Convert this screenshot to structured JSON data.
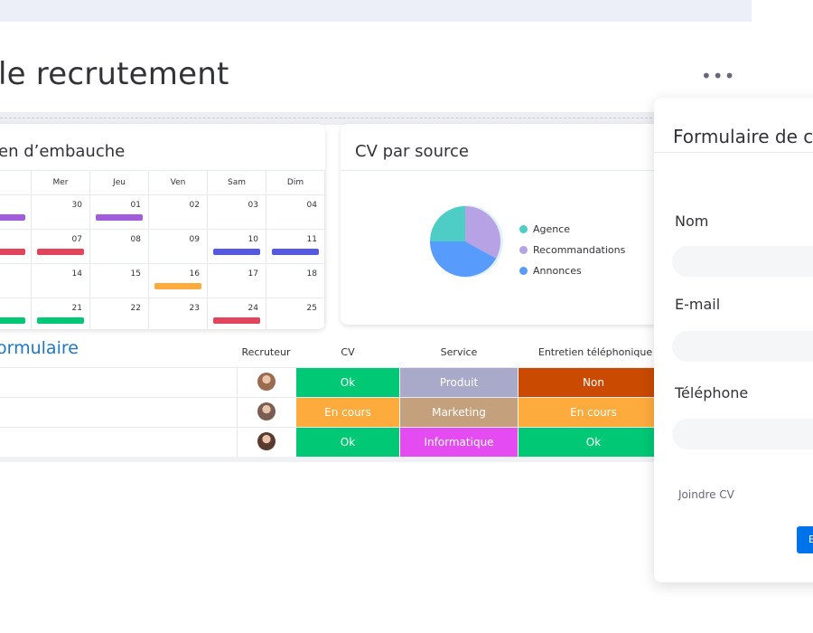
{
  "board": {
    "title": "le recrutement",
    "more_icon": "more-dots-icon"
  },
  "calendar": {
    "title": "en d’embauche",
    "days": [
      "Mer",
      "Jeu",
      "Ven",
      "Sam",
      "Dim"
    ],
    "weeks": [
      [
        {
          "num": "30"
        },
        {
          "num": "01",
          "bar": "#a25ddc"
        },
        {
          "num": "02"
        },
        {
          "num": "03"
        },
        {
          "num": "04"
        }
      ],
      [
        {
          "num": "07",
          "bar": "#e2445c"
        },
        {
          "num": "08"
        },
        {
          "num": "09"
        },
        {
          "num": "10",
          "bar": "#5559df"
        },
        {
          "num": "11",
          "bar": "#5559df"
        }
      ],
      [
        {
          "num": "14"
        },
        {
          "num": "15"
        },
        {
          "num": "16",
          "bar": "#fdab3d"
        },
        {
          "num": "17"
        },
        {
          "num": "18"
        }
      ],
      [
        {
          "num": "21",
          "bar": "#00c875"
        },
        {
          "num": "22"
        },
        {
          "num": "23"
        },
        {
          "num": "24",
          "bar": "#e2445c"
        },
        {
          "num": "25"
        }
      ]
    ],
    "left_bar_colors": [
      "#a25ddc",
      "#e2445c",
      "#ffffff",
      "#00c875"
    ]
  },
  "cv_chart": {
    "title": "CV par source",
    "legend": [
      {
        "label": "Agence",
        "color": "#4eccc6"
      },
      {
        "label": "Recommandations",
        "color": "#b8a2e6"
      },
      {
        "label": "Annonces",
        "color": "#579bfc"
      }
    ]
  },
  "chart_data": {
    "type": "pie",
    "title": "CV par source",
    "categories": [
      "Agence",
      "Recommandations",
      "Annonces"
    ],
    "values": [
      25,
      33,
      42
    ],
    "colors": [
      "#4eccc6",
      "#b8a2e6",
      "#579bfc"
    ],
    "legend_position": "right"
  },
  "table": {
    "group_title": "ormulaire",
    "headers": {
      "recruiter": "Recruteur",
      "cv": "CV",
      "service": "Service",
      "interview": "Entretien téléphonique"
    },
    "rows": [
      {
        "avatar": "#9b6b4f",
        "cv": {
          "text": "Ok",
          "color": "#00c875"
        },
        "service": {
          "text": "Produit",
          "color": "#a9a9c9"
        },
        "interview": {
          "text": "Non",
          "color": "#c94a00"
        }
      },
      {
        "avatar": "#7a5e54",
        "cv": {
          "text": "En cours",
          "color": "#fdab3d"
        },
        "service": {
          "text": "Marketing",
          "color": "#c5a07d"
        },
        "interview": {
          "text": "En cours",
          "color": "#fdab3d"
        }
      },
      {
        "avatar": "#5a3a2e",
        "cv": {
          "text": "Ok",
          "color": "#00c875"
        },
        "service": {
          "text": "Informatique",
          "color": "#e44cf2"
        },
        "interview": {
          "text": "Ok",
          "color": "#00c875"
        }
      }
    ]
  },
  "form": {
    "title": "Formulaire de c",
    "name_label": "Nom",
    "email_label": "E-mail",
    "phone_label": "Téléphone",
    "attach_label": "Joindre  CV",
    "submit_label": "E"
  },
  "colors": {
    "accent": "#0073ea",
    "group_title": "#1f76c2"
  }
}
